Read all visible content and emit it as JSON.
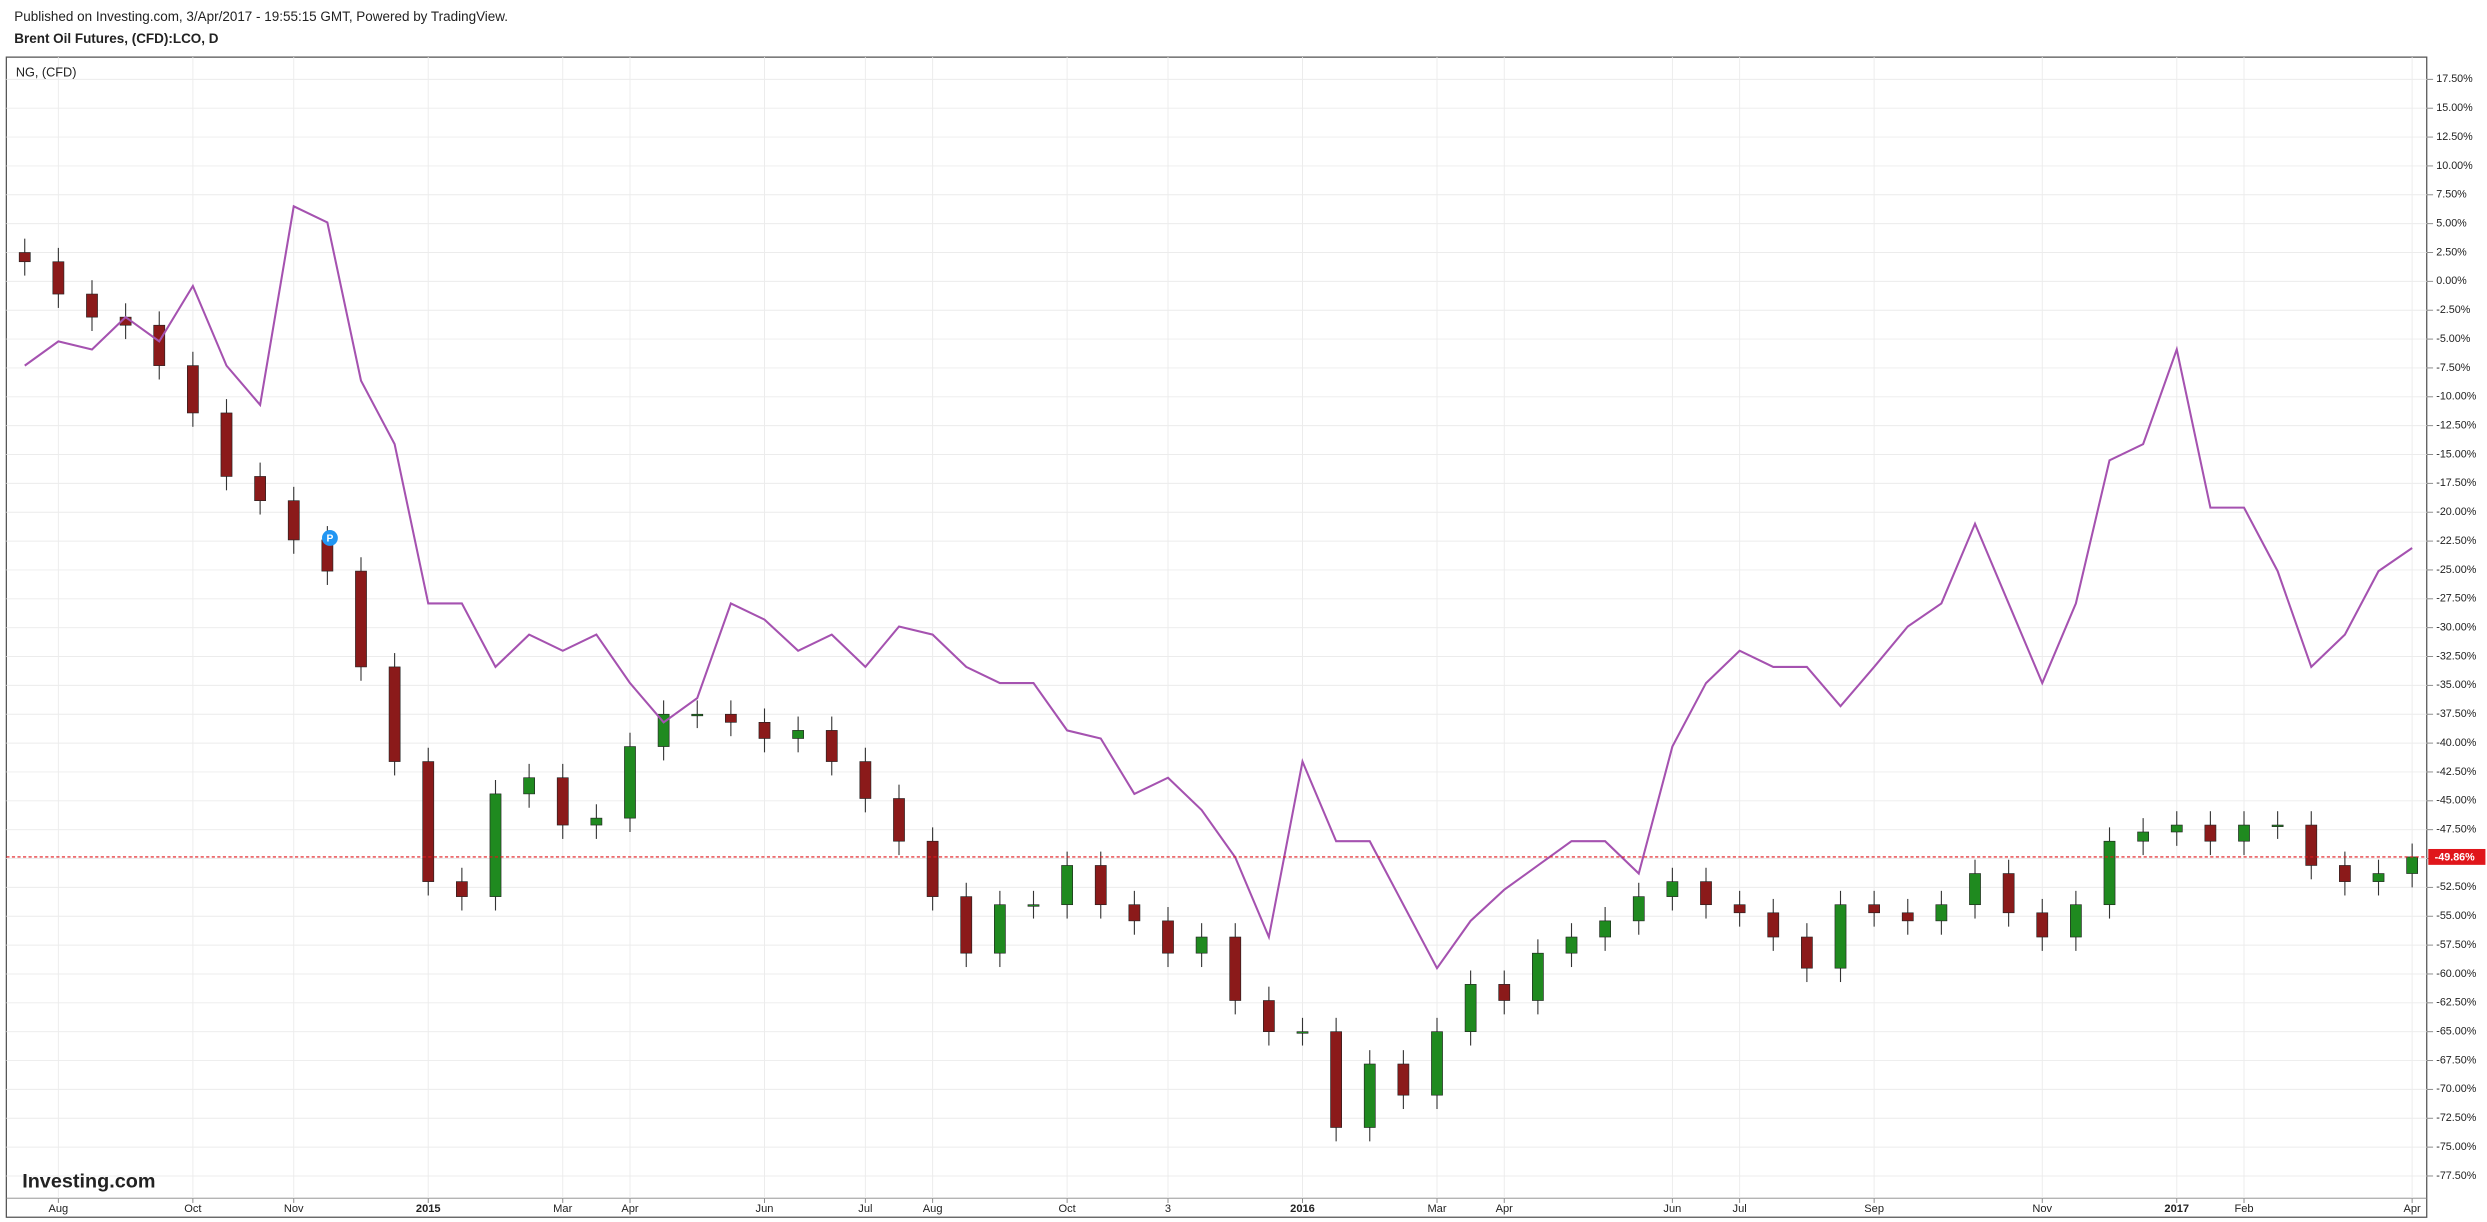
{
  "header": {
    "published": "Published on Investing.com, 3/Apr/2017 - 19:55:15 GMT, Powered by TradingView.",
    "symbol": "Brent Oil Futures, (CFD):LCO, D"
  },
  "logo": "Investing.com",
  "event_marker": "P",
  "chart_data": {
    "type": "candlestick",
    "categories": [
      null,
      "Aug",
      null,
      null,
      null,
      "Oct",
      null,
      null,
      "Nov",
      null,
      null,
      null,
      "2015",
      null,
      null,
      null,
      "Mar",
      null,
      "Apr",
      null,
      null,
      null,
      "Jun",
      null,
      null,
      "Jul",
      null,
      "Aug",
      null,
      null,
      null,
      "Oct",
      null,
      null,
      "3",
      null,
      null,
      null,
      "2016",
      null,
      null,
      null,
      "Mar",
      null,
      "Apr",
      null,
      null,
      null,
      null,
      "Jun",
      null,
      "Jul",
      null,
      null,
      null,
      "Sep",
      null,
      null,
      null,
      null,
      "Nov",
      null,
      null,
      null,
      "2017",
      null,
      "Feb",
      null,
      null,
      null,
      null,
      "Apr"
    ],
    "series": [
      {
        "name": "Brent Oil Futures, (CFD):LCO, D",
        "type": "candlestick",
        "up_color": "#1f8a1f",
        "down_color": "#8b1a1a",
        "open": [
          2.5,
          1.7,
          -1.1,
          -3.1,
          -3.8,
          -7.3,
          -11.4,
          -16.9,
          -19.0,
          -22.4,
          -25.1,
          -33.4,
          -41.6,
          -52.0,
          -53.3,
          -44.4,
          -43.0,
          -47.1,
          -46.5,
          -40.3,
          -37.5,
          -37.5,
          -38.2,
          -39.6,
          -38.9,
          -41.6,
          -44.8,
          -48.5,
          -53.3,
          -58.2,
          -54.0,
          -54.0,
          -50.6,
          -54.0,
          -55.4,
          -58.2,
          -56.8,
          -62.3,
          -65.0,
          -65.0,
          -73.3,
          -67.8,
          -70.5,
          -65.0,
          -60.9,
          -62.3,
          -58.2,
          -56.8,
          -55.4,
          -53.3,
          -52.0,
          -54.0,
          -54.7,
          -56.8,
          -59.5,
          -54.0,
          -54.7,
          -55.4,
          -54.0,
          -51.3,
          -54.7,
          -56.8,
          -54.0,
          -48.5,
          -47.7,
          -47.1,
          -48.5,
          -47.1,
          -47.1,
          -50.6,
          -52.0,
          -51.3
        ],
        "high": [
          3.7,
          2.9,
          0.1,
          -1.9,
          -2.6,
          -6.1,
          -10.2,
          -15.7,
          -17.8,
          -21.2,
          -23.9,
          -32.2,
          -40.4,
          -50.8,
          -43.2,
          -41.8,
          -41.8,
          -45.3,
          -39.1,
          -36.3,
          -36.3,
          -36.3,
          -37.0,
          -37.7,
          -37.7,
          -40.4,
          -43.6,
          -47.3,
          -52.1,
          -52.8,
          -52.8,
          -49.4,
          -49.4,
          -52.8,
          -54.2,
          -55.6,
          -55.6,
          -61.1,
          -63.8,
          -63.8,
          -66.6,
          -66.6,
          -63.8,
          -59.7,
          -59.7,
          -57.0,
          -55.6,
          -54.2,
          -52.1,
          -50.8,
          -50.8,
          -52.8,
          -53.5,
          -55.6,
          -52.8,
          -52.8,
          -53.5,
          -52.8,
          -50.1,
          -50.1,
          -53.5,
          -52.8,
          -47.3,
          -46.5,
          -45.9,
          -45.9,
          -45.9,
          -45.9,
          -45.9,
          -49.4,
          -50.1,
          -48.7
        ],
        "low": [
          0.5,
          -2.3,
          -4.3,
          -5.0,
          -8.5,
          -12.6,
          -18.1,
          -20.2,
          -23.6,
          -26.3,
          -34.6,
          -42.8,
          -53.2,
          -54.5,
          -54.5,
          -45.6,
          -48.3,
          -48.3,
          -47.7,
          -41.5,
          -38.7,
          -39.4,
          -40.8,
          -40.8,
          -42.8,
          -46.0,
          -49.7,
          -54.5,
          -59.4,
          -59.4,
          -55.2,
          -55.2,
          -55.2,
          -56.6,
          -59.4,
          -59.4,
          -63.5,
          -66.2,
          -66.2,
          -74.5,
          -74.5,
          -71.7,
          -71.7,
          -66.2,
          -63.5,
          -63.5,
          -59.4,
          -58.0,
          -56.6,
          -54.5,
          -55.2,
          -55.9,
          -58.0,
          -60.7,
          -60.7,
          -55.9,
          -56.6,
          -56.6,
          -55.2,
          -55.9,
          -58.0,
          -58.0,
          -55.2,
          -49.7,
          -48.9,
          -49.7,
          -49.7,
          -48.3,
          -51.8,
          -53.2,
          -53.2,
          -52.5
        ],
        "close": [
          1.7,
          -1.1,
          -3.1,
          -3.8,
          -7.3,
          -11.4,
          -16.9,
          -19.0,
          -22.4,
          -25.1,
          -33.4,
          -41.6,
          -52.0,
          -53.3,
          -44.4,
          -43.0,
          -47.1,
          -46.5,
          -40.3,
          -37.5,
          -37.5,
          -38.2,
          -39.6,
          -38.9,
          -41.6,
          -44.8,
          -48.5,
          -53.3,
          -58.2,
          -54.0,
          -54.0,
          -50.6,
          -54.0,
          -55.4,
          -58.2,
          -56.8,
          -62.3,
          -65.0,
          -65.0,
          -73.3,
          -67.8,
          -70.5,
          -65.0,
          -60.9,
          -62.3,
          -58.2,
          -56.8,
          -55.4,
          -53.3,
          -52.0,
          -54.0,
          -54.7,
          -56.8,
          -59.5,
          -54.0,
          -54.7,
          -55.4,
          -54.0,
          -51.3,
          -54.7,
          -56.8,
          -54.0,
          -48.5,
          -47.7,
          -47.1,
          -48.5,
          -47.1,
          -47.1,
          -50.6,
          -52.0,
          -51.3,
          -49.86
        ]
      },
      {
        "name": "NG,  (CFD)",
        "type": "line",
        "color": "#a552b0",
        "values": [
          -7.3,
          -5.2,
          -5.9,
          -3.1,
          -5.2,
          -0.4,
          -7.3,
          -10.7,
          6.5,
          5.1,
          -8.6,
          -14.1,
          -27.9,
          -27.9,
          -33.4,
          -30.6,
          -32.0,
          -30.6,
          -34.8,
          -38.2,
          -36.1,
          -27.9,
          -29.3,
          -32.0,
          -30.6,
          -33.4,
          -29.9,
          -30.6,
          -33.4,
          -34.8,
          -34.8,
          -38.9,
          -39.6,
          -44.4,
          -43.0,
          -45.8,
          -49.9,
          -56.8,
          -41.6,
          -48.5,
          -48.5,
          -54.0,
          -59.5,
          -55.4,
          -52.7,
          -50.6,
          -48.5,
          -48.5,
          -51.3,
          -40.3,
          -34.8,
          -32.0,
          -33.4,
          -33.4,
          -36.8,
          -33.4,
          -29.9,
          -27.9,
          -21.0,
          -27.9,
          -34.8,
          -27.9,
          -15.5,
          -14.1,
          -5.9,
          -19.6,
          -19.6,
          -25.1,
          -33.4,
          -30.6,
          -25.1,
          -23.1
        ]
      }
    ],
    "ylim": [
      -77.5,
      17.5
    ],
    "yticks": [
      {
        "value": 17.5,
        "label": "17.50%"
      },
      {
        "value": 15,
        "label": "15.00%"
      },
      {
        "value": 12.5,
        "label": "12.50%"
      },
      {
        "value": 10,
        "label": "10.00%"
      },
      {
        "value": 7.5,
        "label": "7.50%"
      },
      {
        "value": 5,
        "label": "5.00%"
      },
      {
        "value": 2.5,
        "label": "2.50%"
      },
      {
        "value": 0,
        "label": "0.00%"
      },
      {
        "value": -2.5,
        "label": "-2.50%"
      },
      {
        "value": -5,
        "label": "-5.00%"
      },
      {
        "value": -7.5,
        "label": "-7.50%"
      },
      {
        "value": -10,
        "label": "-10.00%"
      },
      {
        "value": -12.5,
        "label": "-12.50%"
      },
      {
        "value": -15,
        "label": "-15.00%"
      },
      {
        "value": -17.5,
        "label": "-17.50%"
      },
      {
        "value": -20,
        "label": "-20.00%"
      },
      {
        "value": -22.5,
        "label": "-22.50%"
      },
      {
        "value": -25,
        "label": "-25.00%"
      },
      {
        "value": -27.5,
        "label": "-27.50%"
      },
      {
        "value": -30,
        "label": "-30.00%"
      },
      {
        "value": -32.5,
        "label": "-32.50%"
      },
      {
        "value": -35,
        "label": "-35.00%"
      },
      {
        "value": -37.5,
        "label": "-37.50%"
      },
      {
        "value": -40,
        "label": "-40.00%"
      },
      {
        "value": -42.5,
        "label": "-42.50%"
      },
      {
        "value": -45,
        "label": "-45.00%"
      },
      {
        "value": -47.5,
        "label": "-47.50%"
      },
      {
        "value": -50,
        "label": "-50.00%"
      },
      {
        "value": -52.5,
        "label": "-52.50%"
      },
      {
        "value": -55,
        "label": "-55.00%"
      },
      {
        "value": -57.5,
        "label": "-57.50%"
      },
      {
        "value": -60,
        "label": "-60.00%"
      },
      {
        "value": -62.5,
        "label": "-62.50%"
      },
      {
        "value": -65,
        "label": "-65.00%"
      },
      {
        "value": -67.5,
        "label": "-67.50%"
      },
      {
        "value": -70,
        "label": "-70.00%"
      },
      {
        "value": -72.5,
        "label": "-72.50%"
      },
      {
        "value": -75,
        "label": "-75.00%"
      },
      {
        "value": -77.5,
        "label": "-77.50%"
      }
    ],
    "last_price": {
      "value": -49.86,
      "label": "-49.86%",
      "color": "#e0161b"
    },
    "grid": true
  }
}
